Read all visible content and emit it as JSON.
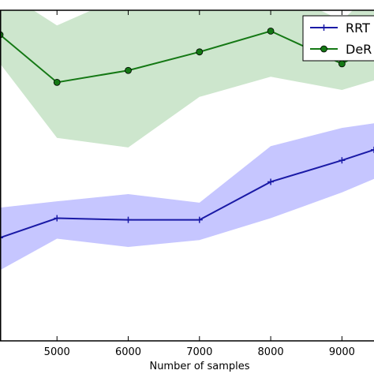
{
  "chart_data": {
    "type": "line",
    "xlabel": "Number of samples",
    "ylabel": "",
    "title": "",
    "xlim": [
      4200,
      9450
    ],
    "ylim": [
      0,
      100
    ],
    "grid": false,
    "legend_position": "top-right",
    "x_ticks": [
      "5000",
      "6000",
      "7000",
      "8000",
      "9000"
    ],
    "series": [
      {
        "name": "RRT",
        "color": "#1a1aa6",
        "band_color": "#c6c6ff",
        "marker": "+",
        "x": [
          4200,
          5000,
          6000,
          7000,
          8000,
          9000,
          9450
        ],
        "y": [
          31.2,
          37.1,
          36.6,
          36.6,
          48.1,
          54.6,
          57.8
        ],
        "lower": [
          21.4,
          30.9,
          28.4,
          30.5,
          37.1,
          44.9,
          49.0
        ],
        "upper": [
          40.3,
          42.2,
          44.4,
          41.8,
          58.9,
          64.4,
          65.8
        ]
      },
      {
        "name": "DeR",
        "color": "#147814",
        "band_color": "#cde6cd",
        "marker": "o",
        "x": [
          4200,
          5000,
          6000,
          7000,
          8000,
          9000,
          9450
        ],
        "y": [
          92.6,
          78.2,
          81.8,
          87.4,
          93.7,
          83.8,
          89.4
        ],
        "lower": [
          83.9,
          61.4,
          58.5,
          73.8,
          79.9,
          75.9,
          78.8
        ],
        "upper": [
          106.5,
          95.4,
          104.9,
          100.1,
          107.3,
          96.8,
          106.3
        ]
      }
    ]
  }
}
